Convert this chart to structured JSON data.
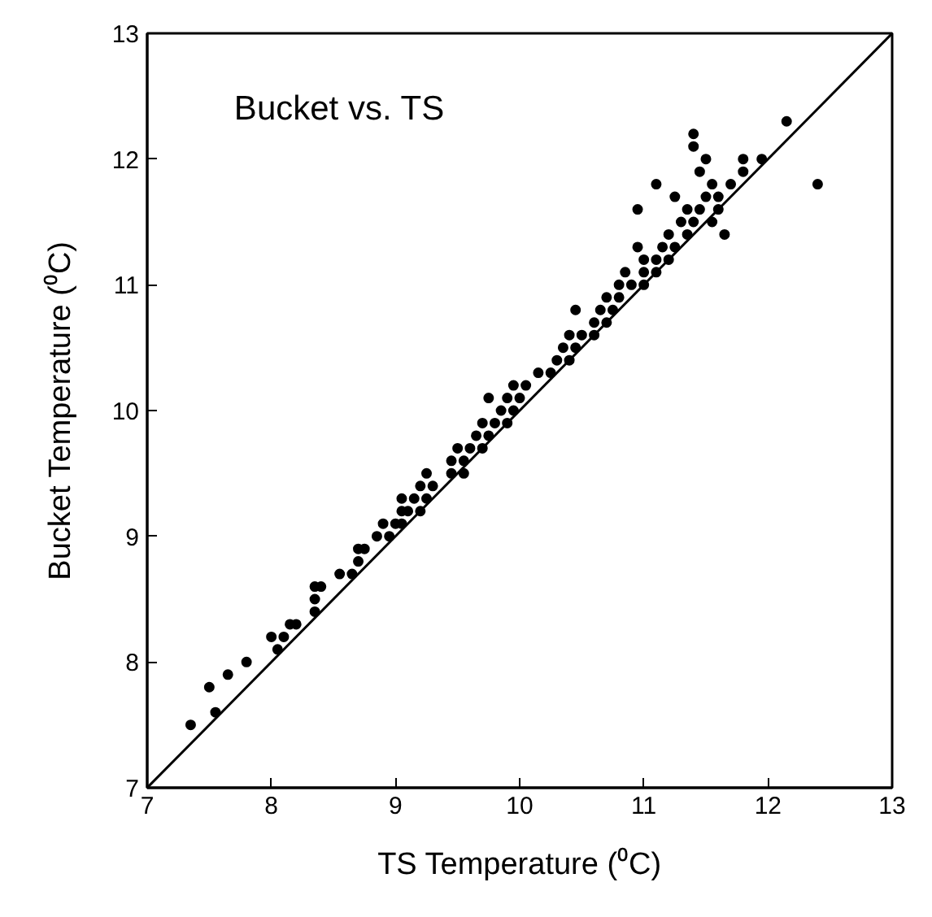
{
  "chart_data": {
    "type": "scatter",
    "title": "Bucket vs. TS",
    "xlabel": "TS Temperature (⁰C)",
    "ylabel": "Bucket Temperature (⁰C)",
    "xlim": [
      7,
      13
    ],
    "ylim": [
      7,
      13
    ],
    "xticks": [
      7,
      8,
      9,
      10,
      11,
      12,
      13
    ],
    "yticks": [
      7,
      8,
      9,
      10,
      11,
      12,
      13
    ],
    "grid": false,
    "marker": "circle",
    "series": [
      {
        "color": "#000000",
        "x": [
          7.35,
          7.55,
          7.5,
          7.65,
          7.8,
          8.05,
          8.0,
          8.1,
          8.15,
          8.2,
          8.35,
          8.35,
          8.35,
          8.4,
          8.55,
          8.65,
          8.7,
          8.7,
          8.75,
          8.85,
          8.95,
          8.9,
          9.0,
          9.05,
          9.05,
          9.1,
          9.2,
          9.05,
          9.15,
          9.25,
          9.2,
          9.3,
          9.25,
          9.45,
          9.55,
          9.45,
          9.55,
          9.5,
          9.6,
          9.7,
          9.65,
          9.75,
          9.7,
          9.8,
          9.9,
          9.85,
          9.95,
          9.75,
          9.9,
          10.0,
          9.95,
          10.05,
          10.15,
          10.25,
          10.3,
          10.4,
          10.35,
          10.45,
          10.4,
          10.5,
          10.6,
          10.6,
          10.7,
          10.45,
          10.65,
          10.75,
          10.7,
          10.8,
          10.8,
          10.9,
          11.0,
          10.85,
          11.0,
          11.1,
          11.0,
          11.1,
          11.2,
          10.95,
          11.15,
          11.25,
          11.2,
          11.35,
          11.65,
          11.3,
          11.4,
          11.55,
          10.95,
          11.35,
          11.45,
          11.6,
          11.25,
          11.5,
          11.6,
          11.1,
          11.55,
          11.7,
          12.4,
          11.45,
          11.8,
          11.5,
          11.8,
          11.95,
          11.4,
          11.4,
          12.15
        ],
        "values": [
          7.5,
          7.6,
          7.8,
          7.9,
          8.0,
          8.1,
          8.2,
          8.2,
          8.3,
          8.3,
          8.4,
          8.5,
          8.6,
          8.6,
          8.7,
          8.7,
          8.8,
          8.9,
          8.9,
          9.0,
          9.0,
          9.1,
          9.1,
          9.1,
          9.2,
          9.2,
          9.2,
          9.3,
          9.3,
          9.3,
          9.4,
          9.4,
          9.5,
          9.5,
          9.5,
          9.6,
          9.6,
          9.7,
          9.7,
          9.7,
          9.8,
          9.8,
          9.9,
          9.9,
          9.9,
          10.0,
          10.0,
          10.1,
          10.1,
          10.1,
          10.2,
          10.2,
          10.3,
          10.3,
          10.4,
          10.4,
          10.5,
          10.5,
          10.6,
          10.6,
          10.6,
          10.7,
          10.7,
          10.8,
          10.8,
          10.8,
          10.9,
          10.9,
          11.0,
          11.0,
          11.0,
          11.1,
          11.1,
          11.1,
          11.2,
          11.2,
          11.2,
          11.3,
          11.3,
          11.3,
          11.4,
          11.4,
          11.4,
          11.5,
          11.5,
          11.5,
          11.6,
          11.6,
          11.6,
          11.6,
          11.7,
          11.7,
          11.7,
          11.8,
          11.8,
          11.8,
          11.8,
          11.9,
          11.9,
          12.0,
          12.0,
          12.0,
          12.1,
          12.2,
          12.3
        ]
      },
      {
        "type": "line",
        "color": "#000000",
        "x": [
          7,
          13
        ],
        "values": [
          7,
          13
        ],
        "marker": "none",
        "line_style": "solid"
      }
    ]
  }
}
